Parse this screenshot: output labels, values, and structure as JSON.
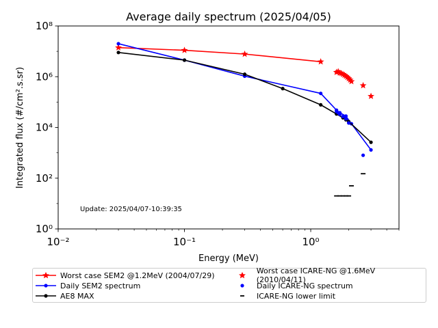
{
  "chart_data": {
    "type": "scatter",
    "title": "Average daily spectrum (2025/04/05)",
    "xlabel": "Energy (MeV)",
    "ylabel": "Integrated flux (#/cm².s.sr)",
    "xscale": "log",
    "yscale": "log",
    "xlim": [
      0.01,
      5
    ],
    "ylim": [
      1,
      100000000
    ],
    "x_ticks": [
      {
        "value": 0.01,
        "label": "10⁻²"
      },
      {
        "value": 0.1,
        "label": "10⁻¹"
      },
      {
        "value": 1,
        "label": "10⁰"
      }
    ],
    "y_ticks": [
      {
        "value": 1,
        "label": "10⁰"
      },
      {
        "value": 100,
        "label": "10²"
      },
      {
        "value": 10000,
        "label": "10⁴"
      },
      {
        "value": 1000000,
        "label": "10⁶"
      },
      {
        "value": 100000000,
        "label": "10⁸"
      }
    ],
    "annotation": "Update: 2025/04/07-10:39:35",
    "grid": false,
    "legend_position": "below plot",
    "series": [
      {
        "name": "Worst case SEM2 @1.2MeV (2004/07/29)",
        "color": "#ff0000",
        "marker": "star",
        "line": true,
        "x": [
          0.03,
          0.1,
          0.3,
          1.2
        ],
        "y": [
          14000000,
          11000000,
          7800000,
          3900000
        ]
      },
      {
        "name": "Daily SEM2 spectrum",
        "color": "#0000ff",
        "marker": "dot",
        "line": true,
        "x": [
          0.03,
          0.1,
          0.3,
          1.2,
          1.6,
          1.7,
          1.9,
          2.1,
          3.0
        ],
        "y": [
          20000000,
          4500000,
          1050000,
          220000,
          48000,
          38000,
          28000,
          14000,
          1300
        ]
      },
      {
        "name": "AE8 MAX",
        "color": "#000000",
        "marker": "dot",
        "line": true,
        "x": [
          0.03,
          0.1,
          0.3,
          0.6,
          1.2,
          1.6,
          1.8,
          1.9,
          2.0,
          3.0
        ],
        "y": [
          9000000,
          4500000,
          1250000,
          340000,
          78000,
          34000,
          24000,
          20000,
          17000,
          2600
        ]
      },
      {
        "name": "Worst case ICARE-NG @1.6MeV (2010/04/11)",
        "color": "#ff0000",
        "marker": "star",
        "line": false,
        "x": [
          1.6,
          1.65,
          1.7,
          1.75,
          1.8,
          1.85,
          1.9,
          1.95,
          2.0,
          2.05,
          2.1,
          2.6,
          3.0
        ],
        "y": [
          1500000,
          1600000,
          1400000,
          1350000,
          1250000,
          1150000,
          1050000,
          950000,
          850000,
          750000,
          650000,
          450000,
          170000
        ]
      },
      {
        "name": "Daily ICARE-NG spectrum",
        "color": "#0000ff",
        "marker": "dot",
        "line": false,
        "x": [
          1.6,
          1.65,
          1.7,
          1.8,
          1.9,
          2.0,
          2.6
        ],
        "y": [
          43000,
          38000,
          33000,
          27000,
          22000,
          15000,
          800
        ]
      },
      {
        "name": "ICARE-NG lower limit",
        "color": "#000000",
        "marker": "hline",
        "line": false,
        "x": [
          1.6,
          1.7,
          1.8,
          1.9,
          2.0,
          2.1,
          2.6
        ],
        "y": [
          20,
          20,
          20,
          20,
          20,
          50,
          150
        ]
      }
    ]
  }
}
